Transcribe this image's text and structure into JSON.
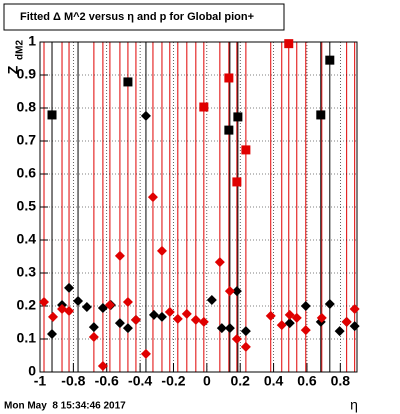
{
  "chart_data": {
    "type": "scatter",
    "title": "Fitted Δ M^2 versus η and p for Global pion+",
    "y_label": "Z",
    "y_label_sub": "dM2",
    "x_label": "η",
    "timestamp": "Mon May  8 15:34:46 2017",
    "xlim": [
      -1,
      0.9
    ],
    "ylim": [
      0,
      1
    ],
    "xticks": [
      -1,
      -0.8,
      -0.6,
      -0.4,
      -0.2,
      0,
      0.2,
      0.4,
      0.6,
      0.8
    ],
    "yticks": [
      0,
      0.1,
      0.2,
      0.3,
      0.4,
      0.5,
      0.6,
      0.7,
      0.8,
      0.9,
      1
    ],
    "grid": true,
    "red_lines_x": [
      -0.976,
      -0.928,
      -0.868,
      -0.826,
      -0.677,
      -0.623,
      -0.581,
      -0.521,
      -0.473,
      -0.425,
      -0.323,
      -0.269,
      -0.222,
      -0.174,
      -0.12,
      -0.066,
      -0.018,
      0.078,
      0.132,
      0.18,
      0.234,
      0.383,
      0.449,
      0.491,
      0.539,
      0.593,
      0.689,
      0.838,
      0.886
    ],
    "red_lines_color": "#e00000",
    "black_lines_x": [
      -0.928,
      -0.772,
      -0.365,
      0.138,
      0.186,
      0.683,
      0.737
    ],
    "black_lines_color": "#000000",
    "series": [
      {
        "color": "#000000",
        "marker": "diamond",
        "x": [
          -0.928,
          -0.868,
          -0.826,
          -0.772,
          -0.719,
          -0.677,
          -0.623,
          -0.575,
          -0.521,
          -0.473,
          -0.425,
          -0.365,
          -0.317,
          -0.269,
          0.03,
          0.09,
          0.138,
          0.18,
          0.234,
          0.497,
          0.593,
          0.683,
          0.737,
          0.796,
          0.838,
          0.886
        ],
        "values": [
          0.115,
          0.203,
          0.255,
          0.215,
          0.197,
          0.136,
          0.194,
          0.203,
          0.148,
          0.133,
          0.158,
          0.776,
          0.173,
          0.167,
          0.218,
          0.133,
          0.133,
          0.245,
          0.124,
          0.148,
          0.2,
          0.152,
          0.206,
          0.124,
          0.152,
          0.139
        ]
      },
      {
        "color": "#000000",
        "marker": "square",
        "x": [
          -0.928,
          -0.473,
          0.132,
          0.186,
          0.683,
          0.737
        ],
        "values": [
          0.779,
          0.879,
          0.733,
          0.773,
          0.779,
          0.945
        ]
      },
      {
        "color": "#e00000",
        "marker": "diamond",
        "x": [
          -0.976,
          -0.922,
          -0.868,
          -0.826,
          -0.677,
          -0.623,
          -0.581,
          -0.521,
          -0.473,
          -0.425,
          -0.365,
          -0.323,
          -0.269,
          -0.222,
          -0.174,
          -0.12,
          -0.066,
          -0.018,
          0.078,
          0.138,
          0.18,
          0.234,
          0.383,
          0.449,
          0.497,
          0.539,
          0.593,
          0.689,
          0.838,
          0.886
        ],
        "values": [
          0.212,
          0.167,
          0.191,
          0.185,
          0.106,
          0.018,
          0.203,
          0.352,
          0.212,
          0.158,
          0.055,
          0.53,
          0.367,
          0.182,
          0.161,
          0.176,
          0.158,
          0.152,
          0.333,
          0.245,
          0.1,
          0.076,
          0.17,
          0.142,
          0.173,
          0.164,
          0.127,
          0.164,
          0.152,
          0.191
        ]
      },
      {
        "color": "#e00000",
        "marker": "square",
        "x": [
          -0.018,
          0.132,
          0.18,
          0.234,
          0.491
        ],
        "values": [
          0.803,
          0.891,
          0.576,
          0.673,
          0.995
        ]
      }
    ]
  }
}
